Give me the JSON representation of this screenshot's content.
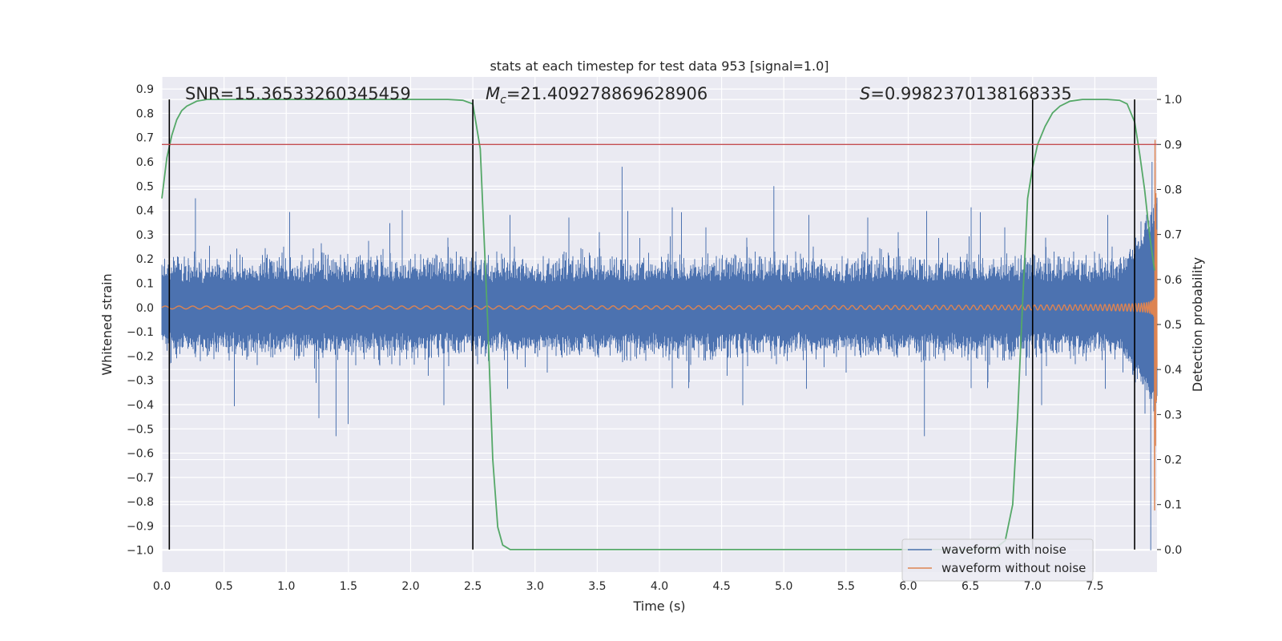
{
  "chart_data": {
    "type": "line",
    "title": "stats at each timestep for test data 953 [signal=1.0]",
    "xlabel": "Time (s)",
    "ylabel": "Whitened strain",
    "ylabel_right": "Detection probability",
    "xlim": [
      0.0,
      8.0
    ],
    "ylim": [
      -1.09,
      0.95
    ],
    "ylim_right": [
      -0.05,
      1.05
    ],
    "x_ticks": [
      "0.0",
      "0.5",
      "1.0",
      "1.5",
      "2.0",
      "2.5",
      "3.0",
      "3.5",
      "4.0",
      "4.5",
      "5.0",
      "5.5",
      "6.0",
      "6.5",
      "7.0",
      "7.5"
    ],
    "y_ticks": [
      "0.9",
      "0.8",
      "0.7",
      "0.6",
      "0.5",
      "0.4",
      "0.3",
      "0.2",
      "0.1",
      "0.0",
      "-0.1",
      "-0.2",
      "-0.3",
      "-0.4",
      "-0.5",
      "-0.6",
      "-0.7",
      "-0.8",
      "-0.9",
      "-1.0"
    ],
    "y_ticks_right": [
      "1.0",
      "0.9",
      "0.8",
      "0.7",
      "0.6",
      "0.5",
      "0.4",
      "0.3",
      "0.2",
      "0.1",
      "0.0"
    ],
    "grid": true,
    "legend_position": "lower-right",
    "annotations": {
      "snr_text": "SNR=15.36533260345459",
      "mc_symbol": "M",
      "mc_subscript": "c",
      "mc_value": "=21.409278869628906",
      "s_symbol": "S",
      "s_value": "=0.9982370138168335"
    },
    "threshold": 0.9,
    "vertical_lines": [
      0.06,
      2.5,
      7.0,
      7.82
    ],
    "series": [
      {
        "name": "waveform with noise",
        "color": "#4c72b0",
        "axis": "left",
        "description_values": "noise band roughly within ±0.25 with peaks up to 0.6 and -0.55; merger region near 7.9 s reaching 0.9 and -1.0"
      },
      {
        "name": "waveform without noise",
        "color": "#dd8452",
        "axis": "left",
        "chirp": {
          "t_coalescence": 7.98,
          "amplitude_start": 0.006,
          "amplitude_end": 0.9,
          "frequency_start": 9.0,
          "frequency_end": 160.0
        }
      },
      {
        "name": "detection probability",
        "color": "#55a868",
        "axis": "right",
        "x": [
          0.0,
          0.04,
          0.08,
          0.12,
          0.16,
          0.2,
          0.28,
          0.36,
          0.5,
          1.0,
          1.5,
          2.0,
          2.3,
          2.42,
          2.5,
          2.56,
          2.62,
          2.66,
          2.7,
          2.74,
          2.8,
          3.5,
          5.0,
          6.0,
          6.5,
          6.7,
          6.78,
          6.84,
          6.88,
          6.92,
          6.96,
          7.0,
          7.04,
          7.1,
          7.16,
          7.22,
          7.3,
          7.4,
          7.5,
          7.6,
          7.7,
          7.76,
          7.82,
          7.86,
          7.9,
          7.94,
          7.98
        ],
        "values": [
          0.78,
          0.87,
          0.92,
          0.955,
          0.975,
          0.985,
          0.996,
          1.0,
          1.0,
          1.0,
          1.0,
          1.0,
          1.0,
          0.998,
          0.99,
          0.89,
          0.5,
          0.2,
          0.05,
          0.01,
          0.0,
          0.0,
          0.0,
          0.0,
          0.0,
          0.003,
          0.02,
          0.1,
          0.3,
          0.55,
          0.78,
          0.85,
          0.9,
          0.94,
          0.97,
          0.985,
          0.996,
          1.0,
          1.0,
          1.0,
          0.998,
          0.99,
          0.95,
          0.88,
          0.8,
          0.7,
          0.62
        ]
      }
    ]
  }
}
